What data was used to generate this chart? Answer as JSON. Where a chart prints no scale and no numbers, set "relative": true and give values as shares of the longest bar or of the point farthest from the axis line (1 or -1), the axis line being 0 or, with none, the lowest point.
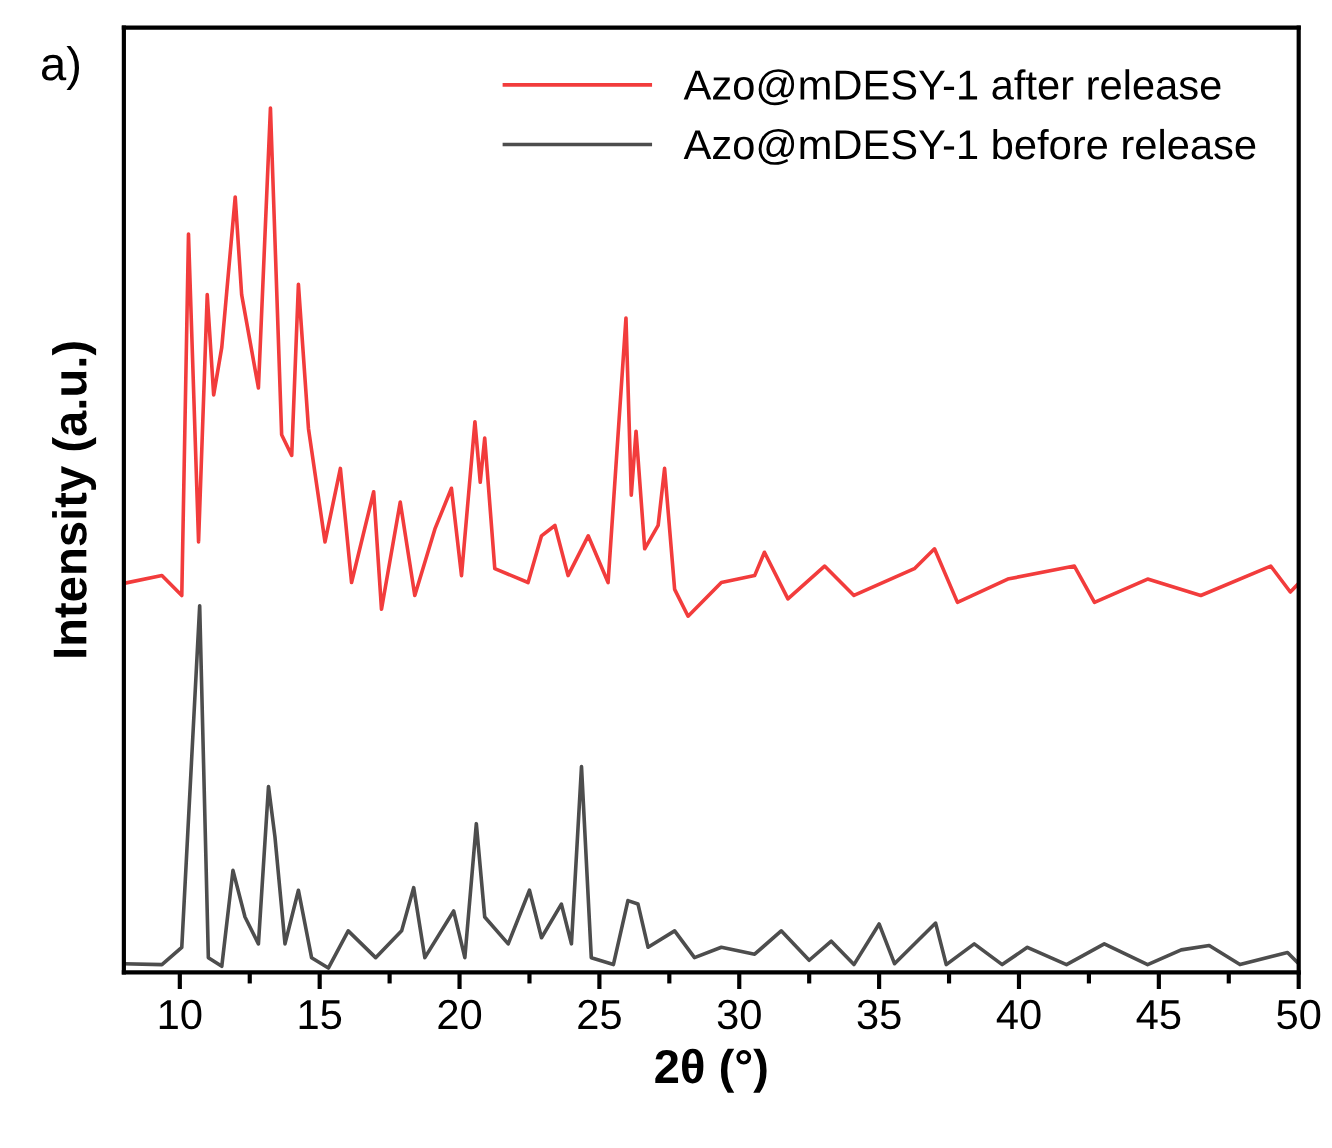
{
  "chart_data": {
    "type": "line",
    "relative": true,
    "xlabel": "2θ (°)",
    "ylabel": "Intensity (a.u.)",
    "annotations": [
      "a)"
    ],
    "xlim": [
      8,
      50
    ],
    "xticks": [
      10,
      {
        "value": 12.5,
        "label": null
      },
      15,
      {
        "value": 17.5,
        "label": null
      },
      20,
      {
        "value": 22.5,
        "label": null
      },
      25,
      {
        "value": 27.5,
        "label": null
      },
      30,
      {
        "value": 32.5,
        "label": null
      },
      35,
      {
        "value": 37.5,
        "label": null
      },
      40,
      {
        "value": 42.5,
        "label": null
      },
      45,
      {
        "value": 47.5,
        "label": null
      },
      50
    ],
    "tick_labels": "x",
    "legend": "top right",
    "grid": false,
    "line_style": "solid",
    "series": [
      {
        "name": "Azo@mDESY-1 after release",
        "color": "#f23c3c",
        "x": [
          8,
          9.36,
          10.07,
          10.31,
          10.67,
          10.98,
          11.21,
          11.5,
          11.98,
          12.21,
          12.81,
          13.24,
          13.64,
          14.0,
          14.24,
          14.6,
          15.19,
          15.74,
          16.14,
          16.93,
          17.21,
          17.88,
          18.4,
          19.12,
          19.71,
          20.07,
          20.55,
          20.74,
          20.9,
          21.26,
          22.45,
          22.93,
          23.41,
          23.88,
          24.6,
          25.31,
          25.95,
          26.14,
          26.31,
          26.62,
          27.1,
          27.33,
          27.69,
          28.17,
          29.36,
          30.55,
          30.9,
          31.74,
          33.05,
          34.1,
          36.26,
          36.98,
          37.8,
          39.6,
          41.98,
          42.7,
          44.6,
          46.5,
          49.0,
          49.7,
          50
        ],
        "values": [
          0.45,
          0.459,
          0.436,
          0.854,
          0.498,
          0.784,
          0.668,
          0.723,
          0.897,
          0.784,
          0.676,
          1.0,
          0.622,
          0.598,
          0.796,
          0.629,
          0.498,
          0.583,
          0.451,
          0.556,
          0.42,
          0.544,
          0.436,
          0.513,
          0.56,
          0.459,
          0.637,
          0.567,
          0.618,
          0.467,
          0.451,
          0.505,
          0.517,
          0.459,
          0.505,
          0.451,
          0.757,
          0.552,
          0.626,
          0.49,
          0.517,
          0.583,
          0.443,
          0.412,
          0.451,
          0.459,
          0.486,
          0.432,
          0.47,
          0.436,
          0.467,
          0.49,
          0.428,
          0.455,
          0.47,
          0.428,
          0.455,
          0.436,
          0.47,
          0.44,
          0.45
        ]
      },
      {
        "name": "Azo@mDESY-1 before release",
        "color": "#4d4d4d",
        "x": [
          8,
          9.36,
          10.07,
          10.71,
          11.02,
          11.5,
          11.9,
          12.33,
          12.81,
          13.17,
          13.4,
          13.76,
          14.24,
          14.71,
          15.31,
          16.02,
          17.0,
          17.93,
          18.36,
          18.76,
          19.79,
          20.19,
          20.6,
          20.9,
          21.74,
          22.5,
          22.93,
          23.64,
          24.0,
          24.36,
          24.71,
          25.5,
          26.02,
          26.38,
          26.74,
          27.69,
          28.4,
          29.36,
          30.55,
          31.5,
          32.5,
          33.29,
          34.1,
          35.0,
          35.55,
          37.02,
          37.4,
          38.4,
          39.4,
          40.3,
          41.7,
          43.05,
          44.6,
          45.8,
          46.8,
          47.9,
          49.6,
          50
        ],
        "values": [
          0.01,
          0.009,
          0.029,
          0.424,
          0.017,
          0.007,
          0.118,
          0.064,
          0.033,
          0.215,
          0.157,
          0.033,
          0.095,
          0.017,
          0.005,
          0.048,
          0.017,
          0.048,
          0.098,
          0.017,
          0.071,
          0.017,
          0.172,
          0.064,
          0.033,
          0.095,
          0.04,
          0.079,
          0.033,
          0.238,
          0.017,
          0.009,
          0.083,
          0.079,
          0.029,
          0.048,
          0.017,
          0.029,
          0.021,
          0.048,
          0.014,
          0.036,
          0.009,
          0.056,
          0.01,
          0.057,
          0.009,
          0.033,
          0.009,
          0.029,
          0.009,
          0.033,
          0.009,
          0.026,
          0.031,
          0.009,
          0.023,
          0.01
        ]
      }
    ]
  }
}
